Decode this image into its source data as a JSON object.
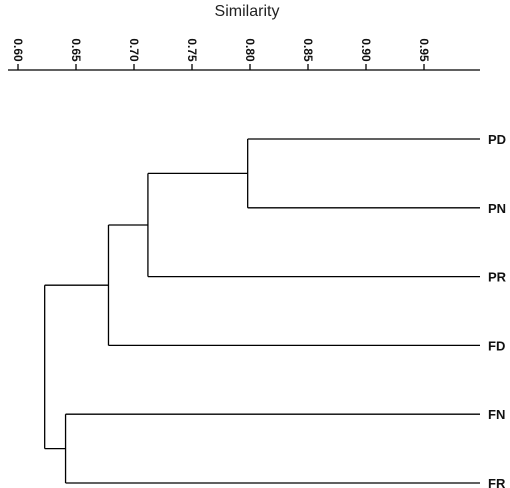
{
  "chart_data": {
    "type": "dendrogram",
    "xlabel": "Similarity",
    "xlim": [
      0.6,
      1.0
    ],
    "ticks": [
      {
        "value": 0.6,
        "label": "0.60"
      },
      {
        "value": 0.65,
        "label": "0.65"
      },
      {
        "value": 0.7,
        "label": "0.70"
      },
      {
        "value": 0.75,
        "label": "0.75"
      },
      {
        "value": 0.8,
        "label": "0.80"
      },
      {
        "value": 0.85,
        "label": "0.85"
      },
      {
        "value": 0.9,
        "label": "0.90"
      },
      {
        "value": 0.95,
        "label": "0.95"
      }
    ],
    "leaves": [
      "PD",
      "PN",
      "PR",
      "FD",
      "FN",
      "FR"
    ],
    "merges": [
      {
        "id": "m1",
        "children": [
          "PD",
          "PN"
        ],
        "similarity": 0.798
      },
      {
        "id": "m2",
        "children": [
          "m1",
          "PR"
        ],
        "similarity": 0.712
      },
      {
        "id": "m3",
        "children": [
          "m2",
          "FD"
        ],
        "similarity": 0.678
      },
      {
        "id": "m4",
        "children": [
          "FN",
          "FR"
        ],
        "similarity": 0.641
      },
      {
        "id": "m5",
        "children": [
          "m3",
          "m4"
        ],
        "similarity": 0.623
      }
    ]
  }
}
